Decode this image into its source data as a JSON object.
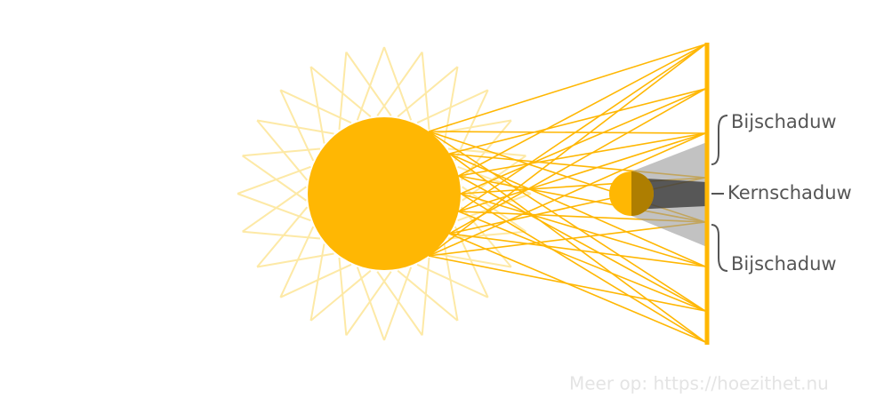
{
  "labels": [
    "Bijschaduw",
    "Kernschaduw",
    "Bijschaduw"
  ],
  "footer": "Meer op: https://hoezithet.nu"
}
